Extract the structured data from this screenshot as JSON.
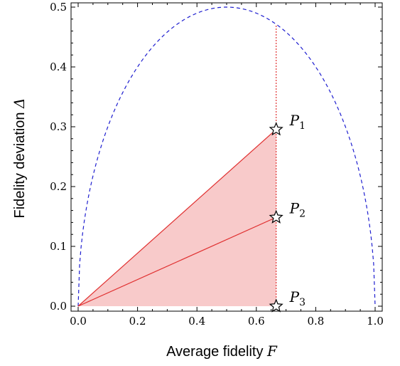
{
  "chart_data": {
    "type": "line",
    "xlabel": "Average fidelity",
    "xlabel_symbol": "F",
    "ylabel": "Fidelity deviation",
    "ylabel_symbol": "Δ",
    "xlim": [
      0,
      1
    ],
    "ylim": [
      0,
      0.5
    ],
    "x_ticks": [
      "0.0",
      "0.2",
      "0.4",
      "0.6",
      "0.8",
      "1.0"
    ],
    "y_ticks": [
      "0.0",
      "0.1",
      "0.2",
      "0.3",
      "0.4",
      "0.5"
    ],
    "grid": false,
    "boundary_curve": {
      "style": "dashed",
      "color": "#1f1fd0",
      "description_function": "sqrt(F(1-F))"
    },
    "vertical_line": {
      "x": 0.6667,
      "style": "dotted",
      "color": "#e03030"
    },
    "shaded_region": {
      "vertices": [
        [
          0,
          0
        ],
        [
          0.6667,
          0.2955
        ],
        [
          0.6667,
          0
        ]
      ],
      "fill": "#f8caca",
      "edge_color": "#e03030"
    },
    "lines": [
      {
        "x": [
          0,
          0.6667
        ],
        "y": [
          0,
          0.2955
        ]
      },
      {
        "x": [
          0,
          0.6667
        ],
        "y": [
          0,
          0.1485
        ]
      }
    ],
    "points": [
      {
        "name": "P",
        "sub": "1",
        "x": 0.6667,
        "y": 0.2955
      },
      {
        "name": "P",
        "sub": "2",
        "x": 0.6667,
        "y": 0.1485
      },
      {
        "name": "P",
        "sub": "3",
        "x": 0.6667,
        "y": 0.0
      }
    ]
  }
}
